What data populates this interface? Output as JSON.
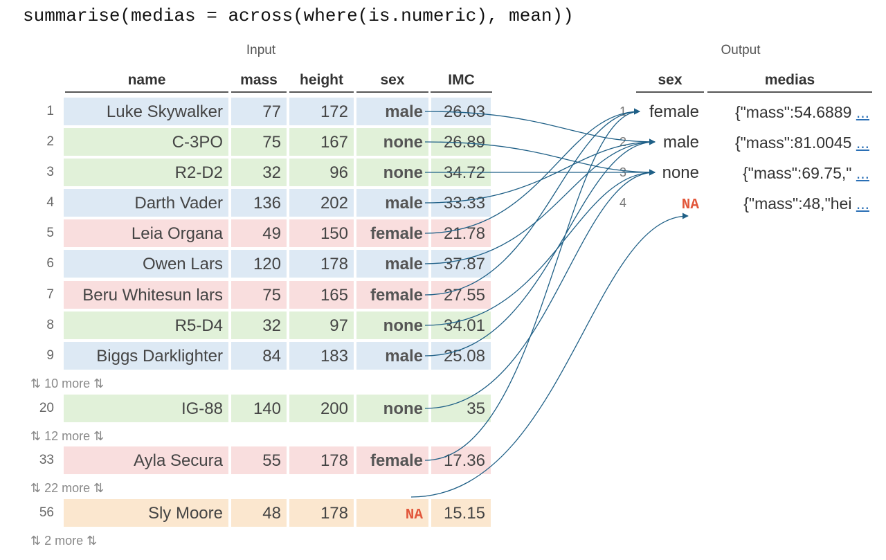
{
  "code": "summarise(medias = across(where(is.numeric), mean))",
  "input": {
    "caption": "Input",
    "headers": [
      "name",
      "mass",
      "height",
      "sex",
      "IMC"
    ],
    "rows": [
      {
        "n": "1",
        "name": "Luke Skywalker",
        "mass": "77",
        "height": "172",
        "sex": "male",
        "imc": "26.03",
        "color": "#dde9f4"
      },
      {
        "n": "2",
        "name": "C-3PO",
        "mass": "75",
        "height": "167",
        "sex": "none",
        "imc": "26.89",
        "color": "#e1f1d9"
      },
      {
        "n": "3",
        "name": "R2-D2",
        "mass": "32",
        "height": "96",
        "sex": "none",
        "imc": "34.72",
        "color": "#e1f1d9"
      },
      {
        "n": "4",
        "name": "Darth Vader",
        "mass": "136",
        "height": "202",
        "sex": "male",
        "imc": "33.33",
        "color": "#dde9f4"
      },
      {
        "n": "5",
        "name": "Leia Organa",
        "mass": "49",
        "height": "150",
        "sex": "female",
        "imc": "21.78",
        "color": "#f9dede"
      },
      {
        "n": "6",
        "name": "Owen Lars",
        "mass": "120",
        "height": "178",
        "sex": "male",
        "imc": "37.87",
        "color": "#dde9f4"
      },
      {
        "n": "7",
        "name": "Beru Whitesun lars",
        "mass": "75",
        "height": "165",
        "sex": "female",
        "imc": "27.55",
        "color": "#f9dede"
      },
      {
        "n": "8",
        "name": "R5-D4",
        "mass": "32",
        "height": "97",
        "sex": "none",
        "imc": "34.01",
        "color": "#e1f1d9"
      },
      {
        "n": "9",
        "name": "Biggs Darklighter",
        "mass": "84",
        "height": "183",
        "sex": "male",
        "imc": "25.08",
        "color": "#dde9f4"
      },
      {
        "n": "20",
        "name": "IG-88",
        "mass": "140",
        "height": "200",
        "sex": "none",
        "imc": "35",
        "color": "#e1f1d9"
      },
      {
        "n": "33",
        "name": "Ayla Secura",
        "mass": "55",
        "height": "178",
        "sex": "female",
        "imc": "17.36",
        "color": "#f9dede"
      },
      {
        "n": "56",
        "name": "Sly Moore",
        "mass": "48",
        "height": "178",
        "sex": "NA",
        "imc": "15.15",
        "color": "#fbe7cf"
      }
    ],
    "more": [
      "⇅ 10 more ⇅",
      "⇅ 12 more ⇅",
      "⇅ 22 more ⇅",
      "⇅ 2 more ⇅"
    ]
  },
  "output": {
    "caption": "Output",
    "headers": [
      "sex",
      "medias"
    ],
    "rows": [
      {
        "n": "1",
        "sex": "female",
        "medias": "{\"mass\":54.6889 ",
        "ellipsis": "..."
      },
      {
        "n": "2",
        "sex": "male",
        "medias": "{\"mass\":81.0045 ",
        "ellipsis": "..."
      },
      {
        "n": "3",
        "sex": "none",
        "medias": "{\"mass\":69.75,\" ",
        "ellipsis": "..."
      },
      {
        "n": "4",
        "sex": "NA",
        "medias": "{\"mass\":48,\"hei ",
        "ellipsis": "..."
      }
    ]
  },
  "colors": {
    "male": "#dde9f4",
    "none": "#e1f1d9",
    "female": "#f9dede",
    "na": "#fbe7cf",
    "arrow": "#1e5f86",
    "na_text": "#e2573b"
  }
}
